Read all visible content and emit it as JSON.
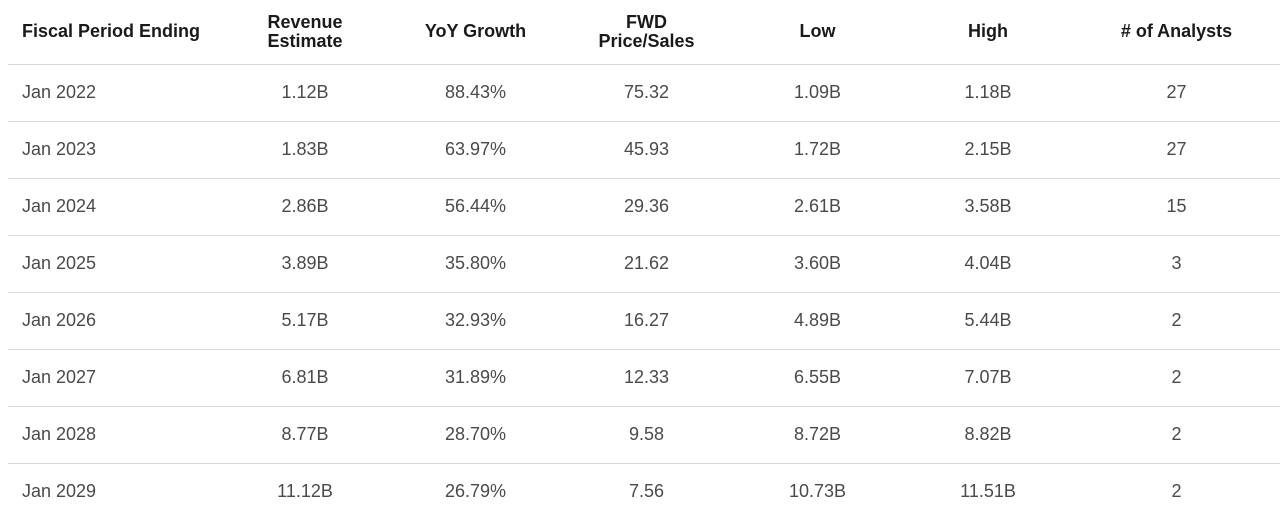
{
  "table": {
    "headers": [
      {
        "line1": "Fiscal Period Ending",
        "line2": ""
      },
      {
        "line1": "Revenue",
        "line2": "Estimate"
      },
      {
        "line1": "YoY Growth",
        "line2": ""
      },
      {
        "line1": "FWD",
        "line2": "Price/Sales"
      },
      {
        "line1": "Low",
        "line2": ""
      },
      {
        "line1": "High",
        "line2": ""
      },
      {
        "line1": "# of Analysts",
        "line2": ""
      }
    ],
    "rows": [
      [
        "Jan 2022",
        "1.12B",
        "88.43%",
        "75.32",
        "1.09B",
        "1.18B",
        "27"
      ],
      [
        "Jan 2023",
        "1.83B",
        "63.97%",
        "45.93",
        "1.72B",
        "2.15B",
        "27"
      ],
      [
        "Jan 2024",
        "2.86B",
        "56.44%",
        "29.36",
        "2.61B",
        "3.58B",
        "15"
      ],
      [
        "Jan 2025",
        "3.89B",
        "35.80%",
        "21.62",
        "3.60B",
        "4.04B",
        "3"
      ],
      [
        "Jan 2026",
        "5.17B",
        "32.93%",
        "16.27",
        "4.89B",
        "5.44B",
        "2"
      ],
      [
        "Jan 2027",
        "6.81B",
        "31.89%",
        "12.33",
        "6.55B",
        "7.07B",
        "2"
      ],
      [
        "Jan 2028",
        "8.77B",
        "28.70%",
        "9.58",
        "8.72B",
        "8.82B",
        "2"
      ],
      [
        "Jan 2029",
        "11.12B",
        "26.79%",
        "7.56",
        "10.73B",
        "11.51B",
        "2"
      ]
    ]
  }
}
